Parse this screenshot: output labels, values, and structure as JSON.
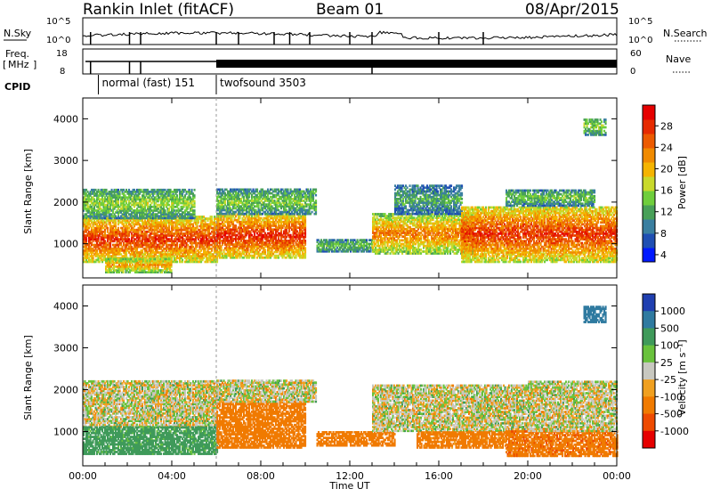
{
  "header": {
    "station": "Rankin Inlet (fitACF)",
    "beam": "Beam 01",
    "date": "08/Apr/2015"
  },
  "strip_labels": {
    "nsky": "N.Sky",
    "nsearch": "N.Search",
    "freq_line1": "Freq.",
    "freq_unit": "MHz",
    "nave": "Nave",
    "cpid": "CPID",
    "nsky_ticks": [
      "10^5",
      "10^0"
    ],
    "nsearch_ticks": [
      "10^5",
      "10^0"
    ],
    "freq_ticks": [
      "18",
      "8"
    ],
    "nave_ticks": [
      "60",
      "0"
    ],
    "cpid_segments": [
      {
        "label": "normal (fast) 151",
        "start_hour": 0.7
      },
      {
        "label": "twofsound 3503",
        "start_hour": 6.0
      }
    ]
  },
  "x_axis": {
    "label": "Time UT",
    "ticks": [
      "00:00",
      "04:00",
      "08:00",
      "12:00",
      "16:00",
      "20:00",
      "00:00"
    ],
    "range_hours": [
      0,
      24
    ]
  },
  "power_panel": {
    "ylabel": "Slant Range [km]",
    "yticks": [
      "4000",
      "3000",
      "2000",
      "1000"
    ],
    "colorbar_label": "Power [dB]",
    "colorbar_ticks": [
      "28",
      "24",
      "20",
      "16",
      "12",
      "8",
      "4"
    ],
    "colors": [
      "#0019ff",
      "#1f4fb3",
      "#3a7fa0",
      "#48a058",
      "#6fce3c",
      "#c9d92b",
      "#f5b400",
      "#f08a00",
      "#ec5a00",
      "#e62a00",
      "#e60000"
    ]
  },
  "velocity_panel": {
    "ylabel": "Slant Range [km]",
    "yticks": [
      "4000",
      "3000",
      "2000",
      "1000"
    ],
    "colorbar_label": "Velocity [m s⁻¹]",
    "colorbar_ticks": [
      "1000",
      "500",
      "100",
      "25",
      "-25",
      "-100",
      "-500",
      "-1000"
    ],
    "colors": [
      "#1f3fb0",
      "#2f7aa0",
      "#3f9a5a",
      "#69c23c",
      "#c8c8c0",
      "#f0a020",
      "#f07a00",
      "#ee4a00",
      "#e60000"
    ]
  },
  "chart_data": [
    {
      "type": "heatmap",
      "title": "Rankin Inlet (fitACF) Beam 01 08/Apr/2015",
      "xlabel": "Time UT",
      "ylabel": "Slant Range [km]",
      "colorbar": "Power [dB]",
      "xlim_hours": [
        0,
        24
      ],
      "ylim_km": [
        180,
        4500
      ],
      "clim_db": [
        0,
        30
      ],
      "echo_regions": [
        {
          "t0": 0.0,
          "t1": 6.0,
          "r0": 550,
          "r1": 1650,
          "power_db": 26
        },
        {
          "t0": 0.0,
          "t1": 5.0,
          "r0": 1600,
          "r1": 2300,
          "power_db": 14
        },
        {
          "t0": 1.0,
          "t1": 4.0,
          "r0": 300,
          "r1": 650,
          "power_db": 20
        },
        {
          "t0": 6.0,
          "t1": 10.0,
          "r0": 650,
          "r1": 1700,
          "power_db": 27
        },
        {
          "t0": 6.0,
          "t1": 10.5,
          "r0": 1700,
          "r1": 2300,
          "power_db": 13
        },
        {
          "t0": 10.5,
          "t1": 13.0,
          "r0": 800,
          "r1": 1100,
          "power_db": 12
        },
        {
          "t0": 13.0,
          "t1": 17.5,
          "r0": 750,
          "r1": 1700,
          "power_db": 22
        },
        {
          "t0": 14.0,
          "t1": 17.0,
          "r0": 1700,
          "r1": 2400,
          "power_db": 10
        },
        {
          "t0": 17.0,
          "t1": 24.0,
          "r0": 550,
          "r1": 1900,
          "power_db": 26
        },
        {
          "t0": 19.0,
          "t1": 23.0,
          "r0": 1900,
          "r1": 2300,
          "power_db": 12
        },
        {
          "t0": 22.5,
          "t1": 23.5,
          "r0": 3600,
          "r1": 4000,
          "power_db": 14
        }
      ]
    },
    {
      "type": "heatmap",
      "title": "Rankin Inlet (fitACF) Beam 01 08/Apr/2015",
      "xlabel": "Time UT",
      "ylabel": "Slant Range [km]",
      "colorbar": "Velocity [m s-1]",
      "xlim_hours": [
        0,
        24
      ],
      "ylim_km": [
        180,
        4500
      ],
      "echo_regions": [
        {
          "t0": 0.0,
          "t1": 6.0,
          "r0": 1100,
          "r1": 2200,
          "velocity": 0
        },
        {
          "t0": 0.0,
          "t1": 6.0,
          "r0": 450,
          "r1": 1100,
          "velocity": 120
        },
        {
          "t0": 6.0,
          "t1": 10.0,
          "r0": 600,
          "r1": 1700,
          "velocity": -150
        },
        {
          "t0": 6.0,
          "t1": 10.5,
          "r0": 1700,
          "r1": 2200,
          "velocity": 0
        },
        {
          "t0": 10.5,
          "t1": 14.0,
          "r0": 650,
          "r1": 1000,
          "velocity": -180
        },
        {
          "t0": 13.0,
          "t1": 20.0,
          "r0": 1000,
          "r1": 2100,
          "velocity": 0
        },
        {
          "t0": 15.0,
          "t1": 19.0,
          "r0": 600,
          "r1": 1000,
          "velocity": -120
        },
        {
          "t0": 19.0,
          "t1": 24.0,
          "r0": 400,
          "r1": 1000,
          "velocity": -250
        },
        {
          "t0": 20.0,
          "t1": 24.0,
          "r0": 1000,
          "r1": 2200,
          "velocity": 0
        },
        {
          "t0": 22.5,
          "t1": 23.5,
          "r0": 3600,
          "r1": 4000,
          "velocity": 600
        }
      ]
    }
  ]
}
